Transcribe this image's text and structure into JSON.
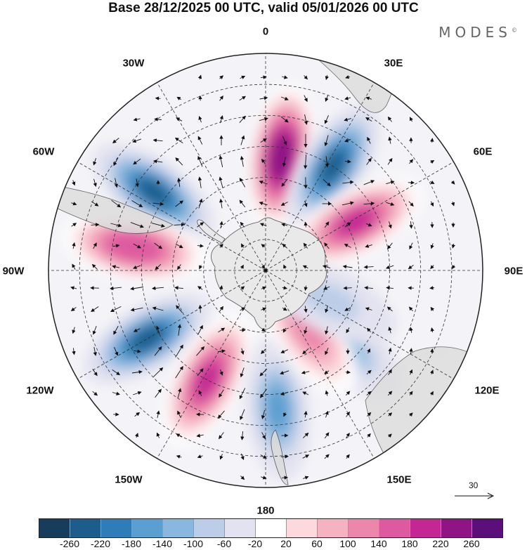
{
  "title": "Base 28/12/2025 00 UTC, valid 05/01/2026 00 UTC",
  "brand": "MODES",
  "brand_mark": "©",
  "longitude_labels": {
    "lon_0": "0",
    "lon_30e": "30E",
    "lon_60e": "60E",
    "lon_90e": "90E",
    "lon_120e": "120E",
    "lon_150e": "150E",
    "lon_180": "180",
    "lon_150w": "150W",
    "lon_120w": "120W",
    "lon_90w": "90W",
    "lon_60w": "60W",
    "lon_30w": "30W"
  },
  "reference_vector": "30",
  "colorbar": {
    "colors": [
      "#173c5c",
      "#1c5d8b",
      "#2e7db8",
      "#5b9fd0",
      "#8ab7de",
      "#bccde8",
      "#e3e2f0",
      "#ffffff",
      "#fbd9dc",
      "#f5b3c2",
      "#ec87ab",
      "#de5aa0",
      "#c42692",
      "#8f1585",
      "#5a0f7a"
    ],
    "ticks": [
      "-260",
      "-220",
      "-180",
      "-140",
      "-100",
      "-60",
      "-20",
      "20",
      "60",
      "100",
      "140",
      "180",
      "220",
      "260"
    ]
  },
  "anomaly_centers": [
    {
      "lon": 8,
      "lat": -53,
      "value": 260
    },
    {
      "lon": 33,
      "lat": -50,
      "value": -240
    },
    {
      "lon": 62,
      "lat": -57,
      "value": 190
    },
    {
      "lon": -55,
      "lat": -46,
      "value": -250
    },
    {
      "lon": -80,
      "lat": -47,
      "value": 180
    },
    {
      "lon": -120,
      "lat": -46,
      "value": -240
    },
    {
      "lon": -152,
      "lat": -50,
      "value": 190
    },
    {
      "lon": 175,
      "lat": -45,
      "value": -150
    },
    {
      "lon": 133,
      "lat": -55,
      "value": -120
    },
    {
      "lon": 145,
      "lat": -66,
      "value": 130
    },
    {
      "lon": 115,
      "lat": -67,
      "value": -60
    }
  ]
}
